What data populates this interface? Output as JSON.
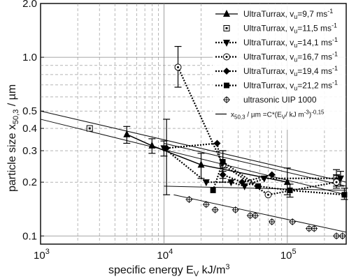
{
  "chart_data": {
    "type": "scatter",
    "x_axis": {
      "label_main": "specific energy E",
      "label_sub": "V",
      "label_unit": " kJ/m",
      "label_sup": "3",
      "scale": "log",
      "range": [
        1000,
        300000
      ],
      "ticks": [
        {
          "value": 1000,
          "base": "10",
          "exp": "3"
        },
        {
          "value": 10000,
          "base": "10",
          "exp": "4"
        },
        {
          "value": 100000,
          "base": "10",
          "exp": "5"
        }
      ]
    },
    "y_axis": {
      "label_main": "particle size x",
      "label_sub": "50,3",
      "label_unit": " / µm",
      "scale": "log",
      "range": [
        0.09,
        2.0
      ],
      "ticks": [
        {
          "value": 0.1,
          "text": "0.1"
        },
        {
          "value": 0.2,
          "text": "0.2"
        },
        {
          "value": 0.3,
          "text": "0.3"
        },
        {
          "value": 0.4,
          "text": "0.4"
        },
        {
          "value": 0.5,
          "text": "0.5"
        },
        {
          "value": 1.0,
          "text": "1.0"
        },
        {
          "value": 2.0,
          "text": "2.0"
        }
      ]
    },
    "grid": true,
    "legend_position": "top-right",
    "series": [
      {
        "name": "UltraTurrax, v",
        "sub": "u",
        "speed": "=9,7 ms",
        "sup": "-1",
        "marker": "triangle-up",
        "line": "solid",
        "points": [
          [
            5000,
            0.37
          ],
          [
            8000,
            0.32
          ],
          [
            20000,
            0.25
          ],
          [
            100000,
            0.2
          ]
        ],
        "errors": [
          [
            0.33,
            0.41
          ],
          [
            0.29,
            0.35
          ],
          [
            0.21,
            0.29
          ],
          [
            0.17,
            0.24
          ]
        ]
      },
      {
        "name": "UltraTurrax, v",
        "sub": "u",
        "speed": "=11,5 ms",
        "sup": "-1",
        "marker": "square-dot",
        "line": "none",
        "points": [
          [
            2500,
            0.4
          ],
          [
            250000,
            0.21
          ]
        ],
        "errors": [
          null,
          [
            0.19,
            0.235
          ]
        ]
      },
      {
        "name": "UltraTurrax, v",
        "sub": "u",
        "speed": "=14,1 ms",
        "sup": "-1",
        "marker": "triangle-down",
        "line": "dotted",
        "points": [
          [
            10000,
            0.31
          ],
          [
            22000,
            0.2
          ],
          [
            35000,
            0.2
          ],
          [
            45000,
            0.19
          ],
          [
            65000,
            0.21
          ],
          [
            270000,
            0.21
          ]
        ],
        "errors": [
          [
            0.28,
            0.34
          ],
          null,
          null,
          null,
          null,
          [
            0.19,
            0.23
          ]
        ]
      },
      {
        "name": "UltraTurrax, v",
        "sub": "u",
        "speed": "=16,7 ms",
        "sup": "-1",
        "marker": "circle-dot",
        "line": "dotted",
        "points": [
          [
            13000,
            0.88
          ],
          [
            30000,
            0.25
          ],
          [
            70000,
            0.17
          ],
          [
            250000,
            0.2
          ]
        ],
        "errors": [
          [
            0.68,
            1.15
          ],
          [
            0.21,
            0.3
          ],
          null,
          [
            0.185,
            0.22
          ]
        ]
      },
      {
        "name": "UltraTurrax, v",
        "sub": "u",
        "speed": "=19,4 ms",
        "sup": "-1",
        "marker": "diamond",
        "line": "dotted",
        "points": [
          [
            10500,
            0.31
          ],
          [
            27000,
            0.33
          ],
          [
            30000,
            0.22
          ],
          [
            43000,
            0.2
          ],
          [
            75000,
            0.22
          ]
        ],
        "errors": [
          [
            0.17,
            0.45
          ],
          null,
          [
            0.2,
            0.24
          ],
          null,
          null
        ]
      },
      {
        "name": "UltraTurrax, v",
        "sub": "u",
        "speed": "=21,2 ms",
        "sup": "-1",
        "marker": "square",
        "line": "dotted",
        "points": [
          [
            25000,
            0.18
          ],
          [
            30000,
            0.26
          ],
          [
            58000,
            0.19
          ],
          [
            105000,
            0.18
          ],
          [
            290000,
            0.17
          ]
        ],
        "errors": [
          null,
          [
            0.23,
            0.3
          ],
          null,
          [
            0.165,
            0.195
          ],
          [
            0.16,
            0.185
          ]
        ]
      },
      {
        "name": "ultrasonic UIP 1000",
        "sub": "",
        "speed": "",
        "sup": "",
        "marker": "diamond-open",
        "line": "none",
        "points": [
          [
            16000,
            0.16
          ],
          [
            22000,
            0.15
          ],
          [
            26000,
            0.14
          ],
          [
            38000,
            0.14
          ],
          [
            50000,
            0.13
          ],
          [
            55000,
            0.13
          ],
          [
            75000,
            0.12
          ],
          [
            110000,
            0.12
          ],
          [
            150000,
            0.11
          ],
          [
            165000,
            0.11
          ],
          [
            250000,
            0.1
          ],
          [
            280000,
            0.1
          ]
        ],
        "errors": []
      }
    ],
    "fit_legend": {
      "pre": "x",
      "sub": "50,3",
      "mid": " / µm =C*(E",
      "sub2": "V",
      "post": "/ kJ m",
      "sup": "-3",
      "end": ")",
      "sup2": "-0,15"
    },
    "fit_lines": [
      {
        "from": [
          1000,
          0.5
        ],
        "to": [
          300000,
          0.2
        ]
      },
      {
        "from": [
          1000,
          0.45
        ],
        "to": [
          300000,
          0.17
        ]
      },
      {
        "from": [
          10000,
          0.33
        ],
        "to": [
          300000,
          0.19
        ]
      },
      {
        "from": [
          10000,
          0.19
        ],
        "to": [
          300000,
          0.18
        ]
      },
      {
        "from": [
          12000,
          0.17
        ],
        "to": [
          300000,
          0.105
        ]
      }
    ]
  }
}
